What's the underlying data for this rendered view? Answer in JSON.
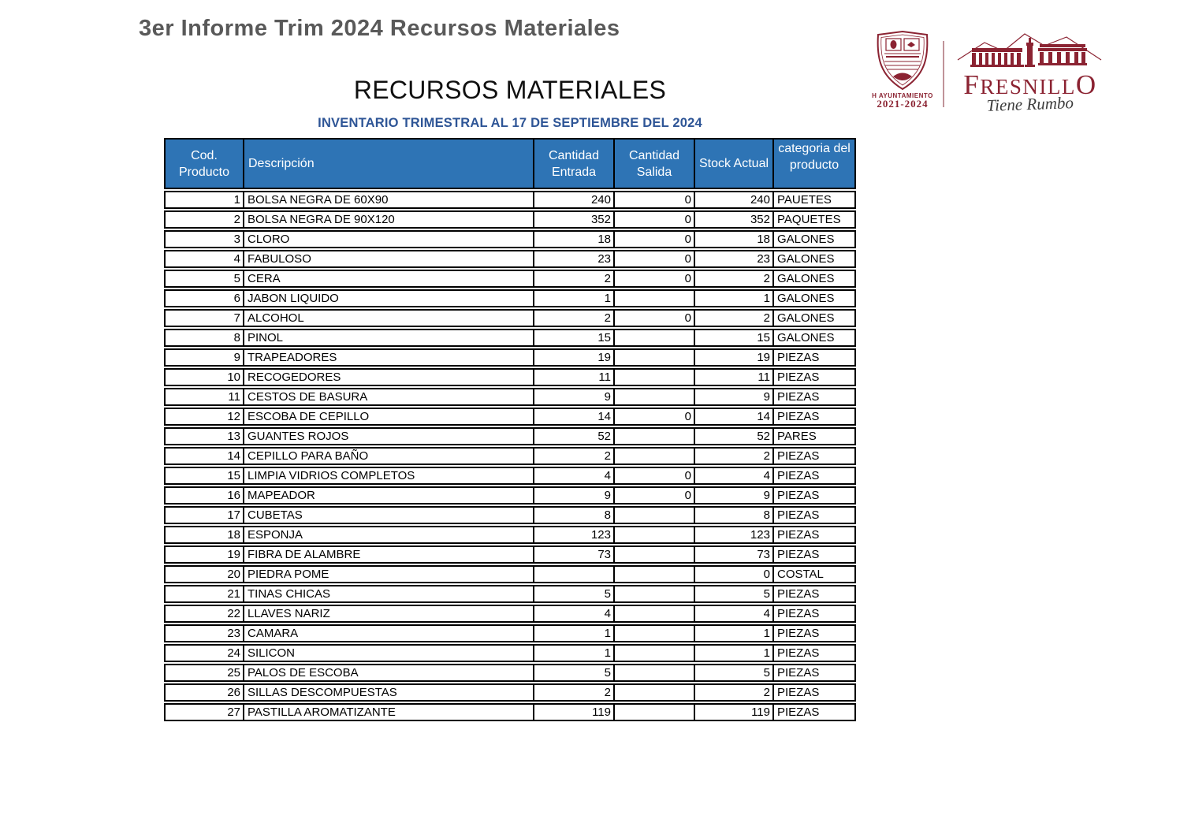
{
  "doc_title": "3er Informe Trim 2024 Recursos Materiales",
  "logos": {
    "crest_caption": "H AYUNTAMIENTO",
    "crest_years": "2021-2024",
    "brand_name": "FRESNILLO",
    "brand_name_first": "F",
    "brand_name_mid": "RESNILL",
    "brand_name_last": "O",
    "brand_tagline": "Tiene Rumbo"
  },
  "section_title": "RECURSOS MATERIALES",
  "subtitle": "INVENTARIO TRIMESTRAL AL 17 DE SEPTIEMBRE DEL 2024",
  "colors": {
    "header_bg": "#2E74B5",
    "subtitle_blue": "#2E5596",
    "title_gray": "#595959",
    "brand_maroon": "#8B2332",
    "border_black": "#000000"
  },
  "table": {
    "columns": [
      "Cod. Producto",
      "Descripción",
      "Cantidad Entrada",
      "Cantidad Salida",
      "Stock Actual",
      "categoria del producto"
    ],
    "rows": [
      {
        "cod": "1",
        "descripcion": "BOLSA NEGRA DE 60X90",
        "entrada": "240",
        "salida": "0",
        "stock": "240",
        "categoria": "PAUETES"
      },
      {
        "cod": "2",
        "descripcion": "BOLSA NEGRA DE 90X120",
        "entrada": "352",
        "salida": "0",
        "stock": "352",
        "categoria": "PAQUETES"
      },
      {
        "cod": "3",
        "descripcion": "CLORO",
        "entrada": "18",
        "salida": "0",
        "stock": "18",
        "categoria": "GALONES"
      },
      {
        "cod": "4",
        "descripcion": "FABULOSO",
        "entrada": "23",
        "salida": "0",
        "stock": "23",
        "categoria": "GALONES"
      },
      {
        "cod": "5",
        "descripcion": "CERA",
        "entrada": "2",
        "salida": "0",
        "stock": "2",
        "categoria": "GALONES"
      },
      {
        "cod": "6",
        "descripcion": "JABON LIQUIDO",
        "entrada": "1",
        "salida": "",
        "stock": "1",
        "categoria": "GALONES"
      },
      {
        "cod": "7",
        "descripcion": "ALCOHOL",
        "entrada": "2",
        "salida": "0",
        "stock": "2",
        "categoria": "GALONES"
      },
      {
        "cod": "8",
        "descripcion": "PINOL",
        "entrada": "15",
        "salida": "",
        "stock": "15",
        "categoria": "GALONES"
      },
      {
        "cod": "9",
        "descripcion": "TRAPEADORES",
        "entrada": "19",
        "salida": "",
        "stock": "19",
        "categoria": "PIEZAS"
      },
      {
        "cod": "10",
        "descripcion": "RECOGEDORES",
        "entrada": "11",
        "salida": "",
        "stock": "11",
        "categoria": "PIEZAS"
      },
      {
        "cod": "11",
        "descripcion": "CESTOS DE BASURA",
        "entrada": "9",
        "salida": "",
        "stock": "9",
        "categoria": "PIEZAS"
      },
      {
        "cod": "12",
        "descripcion": "ESCOBA DE CEPILLO",
        "entrada": "14",
        "salida": "0",
        "stock": "14",
        "categoria": "PIEZAS"
      },
      {
        "cod": "13",
        "descripcion": "GUANTES ROJOS",
        "entrada": "52",
        "salida": "",
        "stock": "52",
        "categoria": "PARES"
      },
      {
        "cod": "14",
        "descripcion": "CEPILLO PARA BAÑO",
        "entrada": "2",
        "salida": "",
        "stock": "2",
        "categoria": "PIEZAS"
      },
      {
        "cod": "15",
        "descripcion": "LIMPIA VIDRIOS COMPLETOS",
        "entrada": "4",
        "salida": "0",
        "stock": "4",
        "categoria": "PIEZAS"
      },
      {
        "cod": "16",
        "descripcion": "MAPEADOR",
        "entrada": "9",
        "salida": "0",
        "stock": "9",
        "categoria": "PIEZAS"
      },
      {
        "cod": "17",
        "descripcion": "CUBETAS",
        "entrada": "8",
        "salida": "",
        "stock": "8",
        "categoria": "PIEZAS"
      },
      {
        "cod": "18",
        "descripcion": "ESPONJA",
        "entrada": "123",
        "salida": "",
        "stock": "123",
        "categoria": "PIEZAS"
      },
      {
        "cod": "19",
        "descripcion": "FIBRA DE ALAMBRE",
        "entrada": "73",
        "salida": "",
        "stock": "73",
        "categoria": "PIEZAS"
      },
      {
        "cod": "20",
        "descripcion": "PIEDRA POME",
        "entrada": "",
        "salida": "",
        "stock": "0",
        "categoria": "COSTAL"
      },
      {
        "cod": "21",
        "descripcion": "TINAS CHICAS",
        "entrada": "5",
        "salida": "",
        "stock": "5",
        "categoria": "PIEZAS"
      },
      {
        "cod": "22",
        "descripcion": "LLAVES NARIZ",
        "entrada": "4",
        "salida": "",
        "stock": "4",
        "categoria": "PIEZAS"
      },
      {
        "cod": "23",
        "descripcion": "CAMARA",
        "entrada": "1",
        "salida": "",
        "stock": "1",
        "categoria": "PIEZAS"
      },
      {
        "cod": "24",
        "descripcion": "SILICON",
        "entrada": "1",
        "salida": "",
        "stock": "1",
        "categoria": "PIEZAS"
      },
      {
        "cod": "25",
        "descripcion": "PALOS DE ESCOBA",
        "entrada": "5",
        "salida": "",
        "stock": "5",
        "categoria": "PIEZAS"
      },
      {
        "cod": "26",
        "descripcion": "SILLAS DESCOMPUESTAS",
        "entrada": "2",
        "salida": "",
        "stock": "2",
        "categoria": "PIEZAS"
      },
      {
        "cod": "27",
        "descripcion": "PASTILLA AROMATIZANTE",
        "entrada": "119",
        "salida": "",
        "stock": "119",
        "categoria": "PIEZAS"
      }
    ]
  }
}
